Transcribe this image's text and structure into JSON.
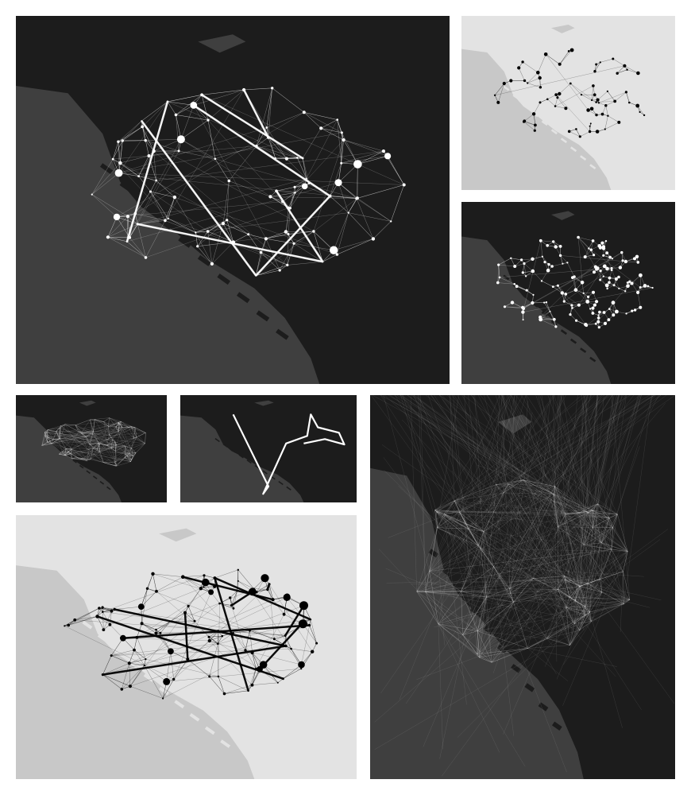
{
  "panels": [
    {
      "id": "p1",
      "theme": "dark",
      "view": "weighted-network",
      "seed": 11,
      "nodes": 90,
      "knn": 5,
      "extra_edges": 40,
      "heavy_edges": 8,
      "node_mode": "sized"
    },
    {
      "id": "p2",
      "theme": "light",
      "view": "sparse-network",
      "seed": 23,
      "nodes": 65,
      "knn": 2,
      "extra_edges": 8,
      "heavy_edges": 0,
      "node_mode": "small"
    },
    {
      "id": "p3",
      "theme": "dark",
      "view": "node-network",
      "seed": 37,
      "nodes": 140,
      "knn": 3,
      "extra_edges": 20,
      "heavy_edges": 0,
      "node_mode": "small"
    },
    {
      "id": "p4",
      "theme": "dark",
      "view": "dense-network",
      "seed": 41,
      "nodes": 80,
      "knn": 6,
      "extra_edges": 120,
      "heavy_edges": 0,
      "node_mode": "none"
    },
    {
      "id": "p5",
      "theme": "dark",
      "view": "single-path",
      "seed": 5,
      "nodes": 0,
      "knn": 0,
      "extra_edges": 0,
      "heavy_edges": 0,
      "node_mode": "none"
    },
    {
      "id": "p6",
      "theme": "dark",
      "view": "flow-burst",
      "seed": 59,
      "nodes": 70,
      "knn": 8,
      "extra_edges": 500,
      "heavy_edges": 0,
      "node_mode": "none"
    },
    {
      "id": "p7",
      "theme": "light",
      "view": "weighted-network",
      "seed": 73,
      "nodes": 95,
      "knn": 4,
      "extra_edges": 50,
      "heavy_edges": 12,
      "node_mode": "sized"
    }
  ],
  "colors": {
    "dark_bg": "#1c1c1c",
    "dark_land": "#3f3f3f",
    "dark_ink": "#ffffff",
    "light_bg": "#e3e3e3",
    "light_land": "#c8c8c8",
    "light_ink": "#000000"
  }
}
